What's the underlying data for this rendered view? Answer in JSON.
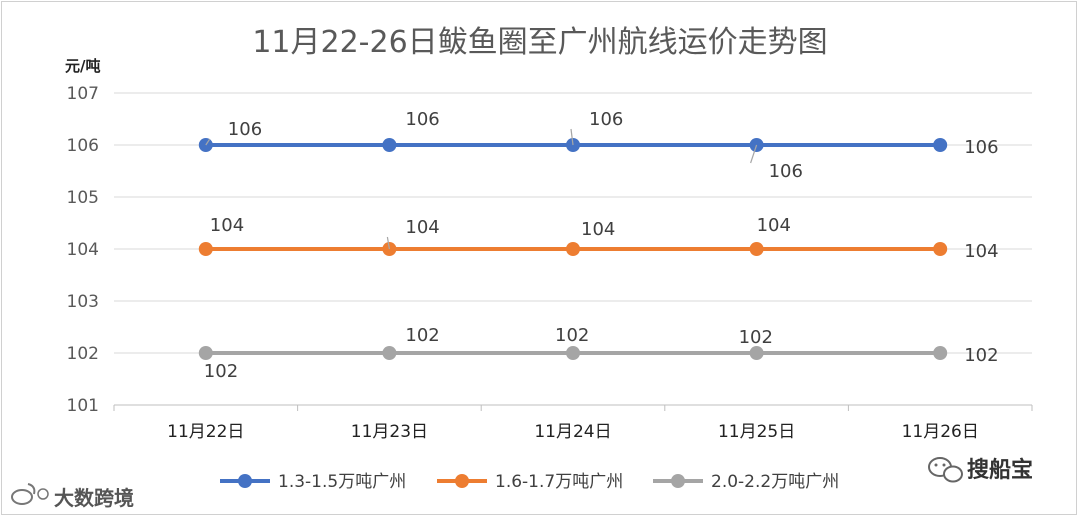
{
  "chart_data": {
    "type": "line",
    "title": "11月22-26日鲅鱼圈至广州航线运价走势图",
    "ylabel": "元/吨",
    "xlabel": "",
    "categories": [
      "11月22日",
      "11月23日",
      "11月24日",
      "11月25日",
      "11月26日"
    ],
    "ylim": [
      101,
      107
    ],
    "yticks": [
      101,
      102,
      103,
      104,
      105,
      106,
      107
    ],
    "grid": true,
    "legend_position": "bottom",
    "series": [
      {
        "name": "1.3-1.5万吨广州",
        "color": "#4472c4",
        "values": [
          106,
          106,
          106,
          106,
          106
        ]
      },
      {
        "name": "1.6-1.7万吨广州",
        "color": "#ed7d31",
        "values": [
          104,
          104,
          104,
          104,
          104
        ]
      },
      {
        "name": "2.0-2.2万吨广州",
        "color": "#a5a5a5",
        "values": [
          102,
          102,
          102,
          102,
          102
        ]
      }
    ]
  },
  "watermarks": {
    "right": "搜船宝",
    "left": "大数跨境",
    "wechat_icon": "wechat-icon",
    "weibo_icon": "weibo-icon"
  }
}
